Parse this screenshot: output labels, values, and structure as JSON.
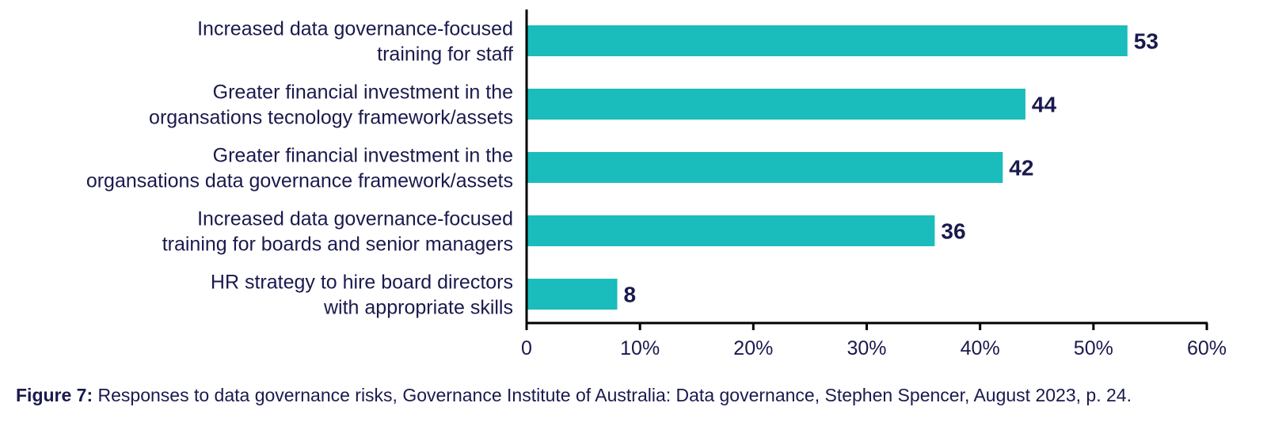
{
  "chart_data": {
    "type": "bar",
    "orientation": "horizontal",
    "categories": [
      [
        "Increased data governance-focused",
        "training for staff"
      ],
      [
        "Greater financial investment in the",
        "organsations tecnology framework/assets"
      ],
      [
        "Greater financial investment in the",
        "organsations data governance framework/assets"
      ],
      [
        "Increased data governance-focused",
        "training for boards and senior managers"
      ],
      [
        "HR strategy to hire board directors",
        "with appropriate skills"
      ]
    ],
    "values": [
      53,
      44,
      42,
      36,
      8
    ],
    "data_labels": [
      "53",
      "44",
      "42",
      "36",
      "8"
    ],
    "xlim": [
      0,
      60
    ],
    "x_ticks": [
      0,
      10,
      20,
      30,
      40,
      50,
      60
    ],
    "x_tick_labels": [
      "0",
      "10%",
      "20%",
      "30%",
      "40%",
      "50%",
      "60%"
    ],
    "grid": false,
    "legend": "none",
    "bar_color": "#1ABCBC",
    "text_color": "#1A1A4E",
    "axis_color": "#000000"
  },
  "caption": {
    "figure_number": "Figure 7:",
    "text": " Responses to data governance risks, Governance Institute of Australia: Data governance, Stephen Spencer, August 2023, p. 24."
  }
}
